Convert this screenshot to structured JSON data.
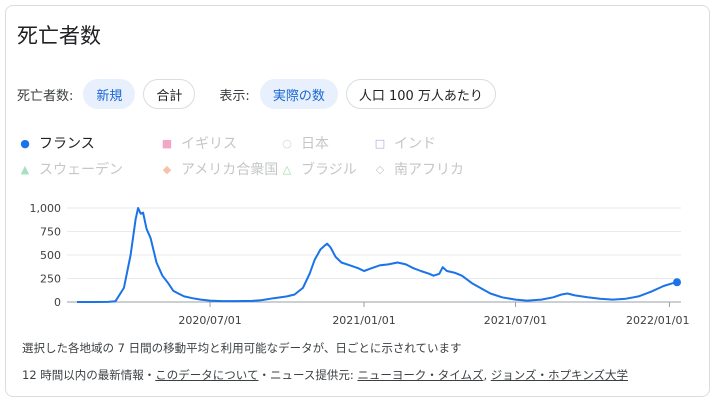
{
  "header": {
    "title": "死亡者数"
  },
  "controls": {
    "deaths_label": "死亡者数:",
    "new_label": "新規",
    "total_label": "合計",
    "display_label": "表示:",
    "actual_label": "実際の数",
    "per_million_label": "人口 100 万人あたり"
  },
  "legend": [
    {
      "name": "フランス",
      "marker": "●",
      "color": "#1a73e8",
      "active": true
    },
    {
      "name": "イギリス",
      "marker": "■",
      "color": "#f4a6c6",
      "active": false
    },
    {
      "name": "日本",
      "marker": "○",
      "color": "#e9c7f0",
      "active": false
    },
    {
      "name": "インド",
      "marker": "□",
      "color": "#a6a9e0",
      "active": false
    },
    {
      "name": "スウェーデン",
      "marker": "▲",
      "color": "#a8e0c2",
      "active": false
    },
    {
      "name": "アメリカ合衆国",
      "marker": "◆",
      "color": "#f6c3a8",
      "active": false
    },
    {
      "name": "ブラジル",
      "marker": "△",
      "color": "#9fd8a8",
      "active": false
    },
    {
      "name": "南アフリカ",
      "marker": "◇",
      "color": "#c4c7c5",
      "active": false
    }
  ],
  "chart_data": {
    "type": "line",
    "series": [
      {
        "name": "フランス",
        "color": "#1a73e8",
        "points": [
          [
            "2020-01-24",
            0
          ],
          [
            "2020-02-15",
            0
          ],
          [
            "2020-03-01",
            1
          ],
          [
            "2020-03-10",
            8
          ],
          [
            "2020-03-20",
            150
          ],
          [
            "2020-03-28",
            500
          ],
          [
            "2020-04-03",
            880
          ],
          [
            "2020-04-06",
            1000
          ],
          [
            "2020-04-09",
            940
          ],
          [
            "2020-04-12",
            950
          ],
          [
            "2020-04-16",
            780
          ],
          [
            "2020-04-21",
            680
          ],
          [
            "2020-04-28",
            420
          ],
          [
            "2020-05-05",
            280
          ],
          [
            "2020-05-12",
            200
          ],
          [
            "2020-05-18",
            120
          ],
          [
            "2020-05-24",
            90
          ],
          [
            "2020-05-31",
            60
          ],
          [
            "2020-06-10",
            40
          ],
          [
            "2020-06-20",
            25
          ],
          [
            "2020-07-01",
            15
          ],
          [
            "2020-07-15",
            10
          ],
          [
            "2020-08-01",
            10
          ],
          [
            "2020-08-20",
            12
          ],
          [
            "2020-09-01",
            20
          ],
          [
            "2020-09-15",
            40
          ],
          [
            "2020-10-01",
            60
          ],
          [
            "2020-10-10",
            80
          ],
          [
            "2020-10-20",
            150
          ],
          [
            "2020-10-28",
            300
          ],
          [
            "2020-11-03",
            450
          ],
          [
            "2020-11-10",
            560
          ],
          [
            "2020-11-15",
            600
          ],
          [
            "2020-11-18",
            620
          ],
          [
            "2020-11-22",
            580
          ],
          [
            "2020-11-28",
            480
          ],
          [
            "2020-12-05",
            420
          ],
          [
            "2020-12-15",
            390
          ],
          [
            "2020-12-25",
            360
          ],
          [
            "2021-01-01",
            330
          ],
          [
            "2021-01-10",
            360
          ],
          [
            "2021-01-20",
            390
          ],
          [
            "2021-01-30",
            400
          ],
          [
            "2021-02-10",
            420
          ],
          [
            "2021-02-20",
            400
          ],
          [
            "2021-03-01",
            360
          ],
          [
            "2021-03-10",
            330
          ],
          [
            "2021-03-20",
            300
          ],
          [
            "2021-03-25",
            280
          ],
          [
            "2021-04-01",
            300
          ],
          [
            "2021-04-05",
            370
          ],
          [
            "2021-04-10",
            330
          ],
          [
            "2021-04-20",
            310
          ],
          [
            "2021-04-28",
            280
          ],
          [
            "2021-05-10",
            200
          ],
          [
            "2021-05-20",
            150
          ],
          [
            "2021-06-01",
            90
          ],
          [
            "2021-06-15",
            50
          ],
          [
            "2021-07-01",
            25
          ],
          [
            "2021-07-15",
            15
          ],
          [
            "2021-08-01",
            25
          ],
          [
            "2021-08-15",
            50
          ],
          [
            "2021-08-25",
            80
          ],
          [
            "2021-09-01",
            90
          ],
          [
            "2021-09-10",
            70
          ],
          [
            "2021-09-25",
            50
          ],
          [
            "2021-10-10",
            35
          ],
          [
            "2021-10-25",
            25
          ],
          [
            "2021-11-10",
            35
          ],
          [
            "2021-11-25",
            60
          ],
          [
            "2021-12-10",
            110
          ],
          [
            "2021-12-25",
            170
          ],
          [
            "2022-01-05",
            200
          ],
          [
            "2022-01-10",
            210
          ]
        ]
      }
    ],
    "x_ticks": [
      "2020/07/01",
      "2021/01/01",
      "2021/07/01",
      "2022/01/01"
    ],
    "x_tick_dates": [
      "2020-07-01",
      "2021-01-01",
      "2021-07-01",
      "2022-01-01"
    ],
    "x_range": [
      "2020-01-24",
      "2022-01-10"
    ],
    "y_ticks": [
      "0",
      "250",
      "500",
      "750",
      "1,000"
    ],
    "y_tick_values": [
      0,
      250,
      500,
      750,
      1000
    ],
    "ylim": [
      0,
      1000
    ],
    "grid": "horizontal"
  },
  "footer": {
    "note": "選択した各地域の 7 日間の移動平均と利用可能なデータが、日ごとに示されています",
    "updated": "12 時間以内の最新情報・",
    "about_link": "このデータについて",
    "news_text": "・ニュース提供元:",
    "source_nyt": "ニューヨーク・タイムズ",
    "comma": ",",
    "source_jhu": "ジョンズ・ホプキンズ大学"
  }
}
